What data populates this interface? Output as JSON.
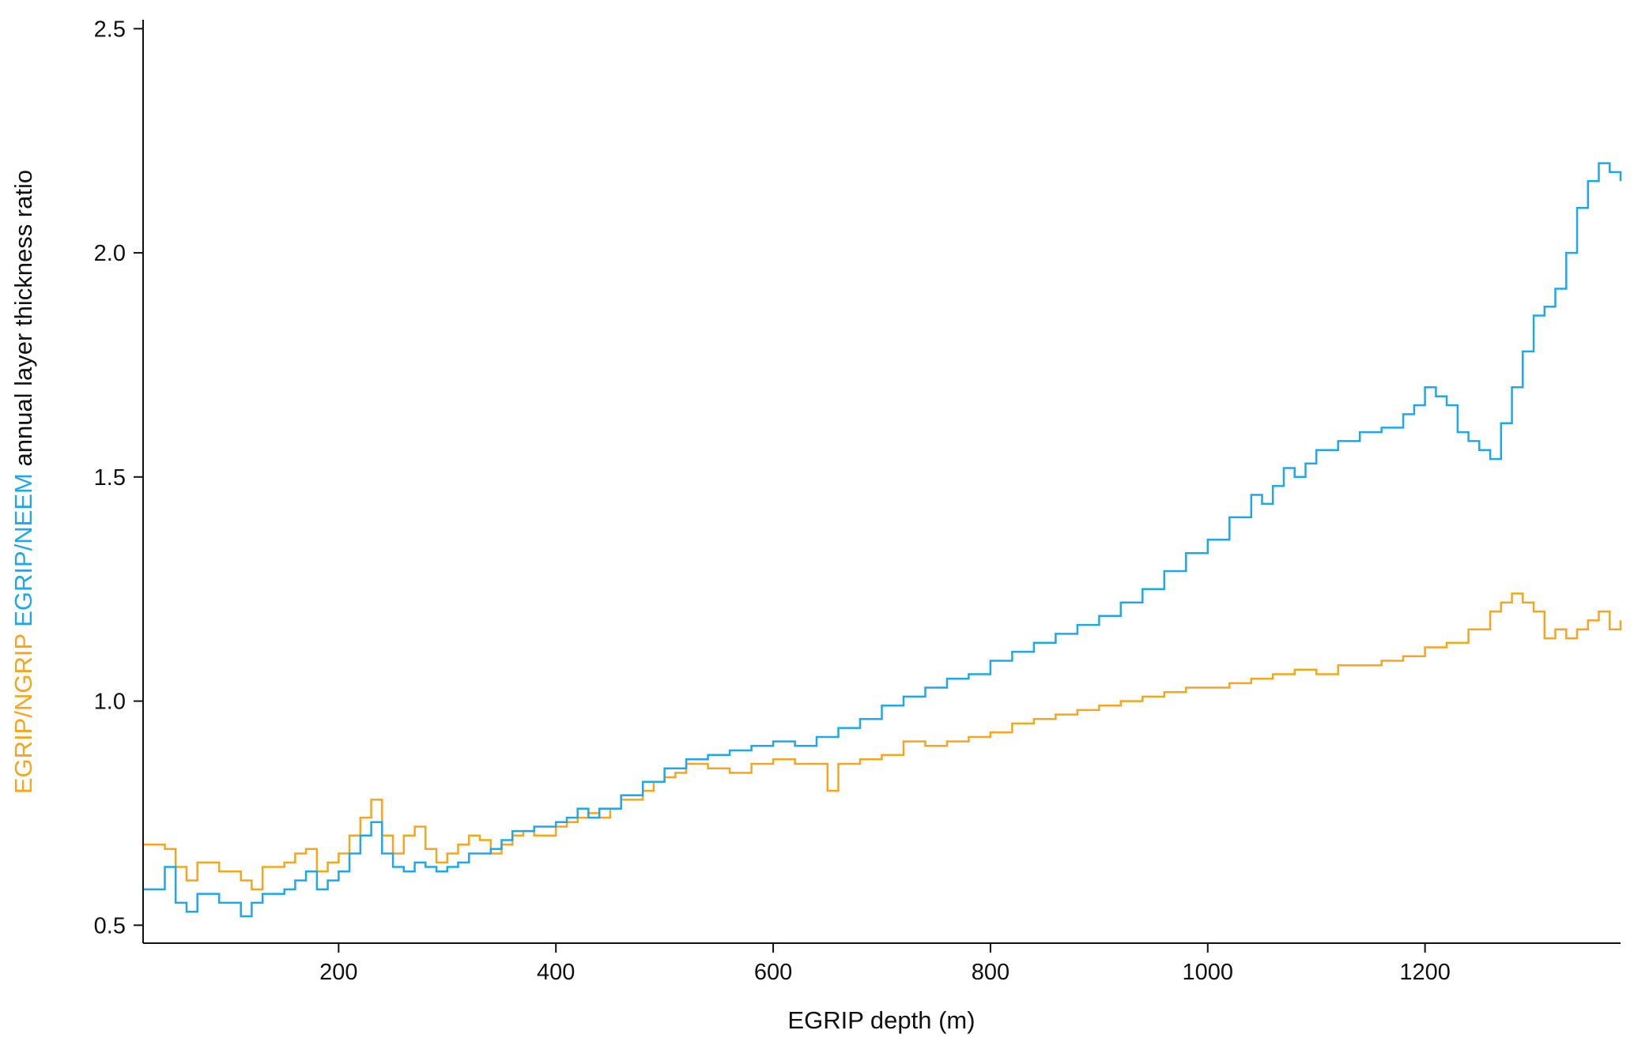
{
  "colors": {
    "ngrip": "#f7a51c",
    "neem": "#1ea7ea",
    "axis": "#111111",
    "text": "#111111"
  },
  "chart_data": {
    "type": "line",
    "step": true,
    "title": "",
    "xlabel": "EGRIP depth (m)",
    "ylabel": {
      "part_ngrip": "EGRIP/NGRIP",
      "part_neem": "EGRIP/NEEM",
      "part_rest": "annual layer thickness ratio"
    },
    "xlim": [
      20,
      1380
    ],
    "ylim": [
      0.46,
      2.52
    ],
    "xticks": [
      200,
      400,
      600,
      800,
      1000,
      1200
    ],
    "yticks": [
      0.5,
      1.0,
      1.5,
      2.0,
      2.5
    ],
    "xtick_labels": [
      "200",
      "400",
      "600",
      "800",
      "1000",
      "1200"
    ],
    "ytick_labels": [
      "0.5",
      "1.0",
      "1.5",
      "2.0",
      "2.5"
    ],
    "grid": false,
    "legend": "none (series identified by colored y-axis label)",
    "series": [
      {
        "name": "EGRIP/NGRIP",
        "color": "#f7a51c",
        "x": [
          20,
          40,
          50,
          60,
          70,
          90,
          110,
          120,
          130,
          150,
          160,
          170,
          180,
          190,
          200,
          210,
          220,
          230,
          240,
          250,
          260,
          270,
          280,
          290,
          300,
          310,
          320,
          330,
          340,
          350,
          360,
          370,
          380,
          400,
          410,
          420,
          430,
          440,
          450,
          460,
          470,
          480,
          490,
          500,
          510,
          520,
          540,
          560,
          580,
          600,
          620,
          640,
          650,
          660,
          680,
          700,
          720,
          740,
          760,
          780,
          800,
          820,
          840,
          860,
          880,
          900,
          920,
          940,
          960,
          980,
          1000,
          1020,
          1040,
          1060,
          1080,
          1100,
          1120,
          1140,
          1160,
          1180,
          1200,
          1220,
          1240,
          1260,
          1270,
          1280,
          1290,
          1300,
          1310,
          1320,
          1330,
          1340,
          1350,
          1360,
          1370,
          1380
        ],
        "y": [
          0.68,
          0.67,
          0.63,
          0.6,
          0.64,
          0.62,
          0.6,
          0.58,
          0.63,
          0.64,
          0.66,
          0.67,
          0.62,
          0.64,
          0.66,
          0.7,
          0.74,
          0.78,
          0.7,
          0.66,
          0.7,
          0.72,
          0.67,
          0.64,
          0.66,
          0.68,
          0.7,
          0.69,
          0.66,
          0.68,
          0.7,
          0.71,
          0.7,
          0.72,
          0.73,
          0.74,
          0.75,
          0.74,
          0.76,
          0.78,
          0.78,
          0.8,
          0.82,
          0.83,
          0.84,
          0.86,
          0.85,
          0.84,
          0.86,
          0.87,
          0.86,
          0.86,
          0.8,
          0.86,
          0.87,
          0.88,
          0.91,
          0.9,
          0.91,
          0.92,
          0.93,
          0.95,
          0.96,
          0.97,
          0.98,
          0.99,
          1.0,
          1.01,
          1.02,
          1.03,
          1.03,
          1.04,
          1.05,
          1.06,
          1.07,
          1.06,
          1.08,
          1.08,
          1.09,
          1.1,
          1.12,
          1.13,
          1.16,
          1.2,
          1.22,
          1.24,
          1.22,
          1.2,
          1.14,
          1.16,
          1.14,
          1.16,
          1.18,
          1.2,
          1.16,
          1.18
        ]
      },
      {
        "name": "EGRIP/NEEM",
        "color": "#1ea7ea",
        "x": [
          20,
          40,
          50,
          60,
          70,
          90,
          110,
          120,
          130,
          150,
          160,
          170,
          180,
          190,
          200,
          210,
          220,
          230,
          240,
          250,
          260,
          270,
          280,
          290,
          300,
          310,
          320,
          330,
          340,
          350,
          360,
          380,
          400,
          410,
          420,
          430,
          440,
          460,
          480,
          500,
          520,
          540,
          560,
          580,
          600,
          620,
          640,
          660,
          680,
          700,
          720,
          740,
          760,
          780,
          800,
          820,
          840,
          860,
          880,
          900,
          920,
          940,
          960,
          980,
          1000,
          1020,
          1040,
          1050,
          1060,
          1070,
          1080,
          1090,
          1100,
          1120,
          1140,
          1160,
          1180,
          1190,
          1200,
          1210,
          1220,
          1230,
          1240,
          1250,
          1260,
          1270,
          1280,
          1290,
          1300,
          1310,
          1320,
          1330,
          1340,
          1350,
          1360,
          1370,
          1380
        ],
        "y": [
          0.58,
          0.63,
          0.55,
          0.53,
          0.57,
          0.55,
          0.52,
          0.55,
          0.57,
          0.58,
          0.6,
          0.62,
          0.58,
          0.6,
          0.62,
          0.66,
          0.7,
          0.73,
          0.66,
          0.63,
          0.62,
          0.64,
          0.63,
          0.62,
          0.63,
          0.64,
          0.66,
          0.66,
          0.67,
          0.69,
          0.71,
          0.72,
          0.73,
          0.74,
          0.76,
          0.74,
          0.76,
          0.79,
          0.82,
          0.85,
          0.87,
          0.88,
          0.89,
          0.9,
          0.91,
          0.9,
          0.92,
          0.94,
          0.96,
          0.99,
          1.01,
          1.03,
          1.05,
          1.06,
          1.09,
          1.11,
          1.13,
          1.15,
          1.17,
          1.19,
          1.22,
          1.25,
          1.29,
          1.33,
          1.36,
          1.41,
          1.46,
          1.44,
          1.48,
          1.52,
          1.5,
          1.53,
          1.56,
          1.58,
          1.6,
          1.61,
          1.64,
          1.66,
          1.7,
          1.68,
          1.66,
          1.6,
          1.58,
          1.56,
          1.54,
          1.62,
          1.7,
          1.78,
          1.86,
          1.88,
          1.92,
          2.0,
          2.1,
          2.16,
          2.2,
          2.18,
          2.16
        ]
      }
    ]
  }
}
